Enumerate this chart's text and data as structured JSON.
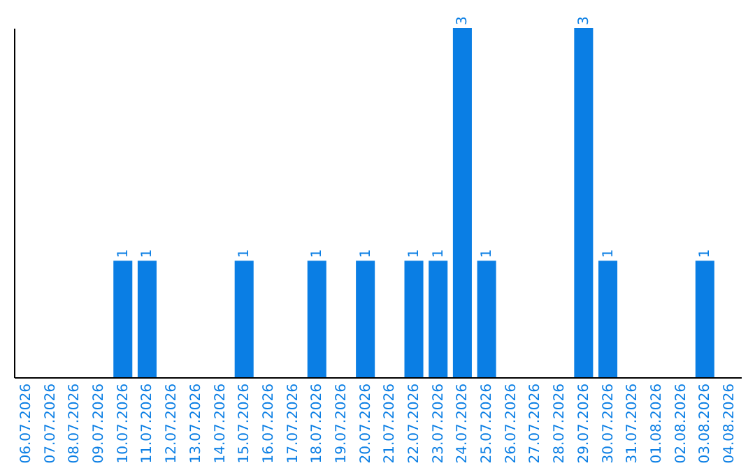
{
  "chart_data": {
    "type": "bar",
    "categories": [
      "06.07.2026",
      "07.07.2026",
      "08.07.2026",
      "09.07.2026",
      "10.07.2026",
      "11.07.2026",
      "12.07.2026",
      "13.07.2026",
      "14.07.2026",
      "15.07.2026",
      "16.07.2026",
      "17.07.2026",
      "18.07.2026",
      "19.07.2026",
      "20.07.2026",
      "21.07.2026",
      "22.07.2026",
      "23.07.2026",
      "24.07.2026",
      "25.07.2026",
      "26.07.2026",
      "27.07.2026",
      "28.07.2026",
      "29.07.2026",
      "30.07.2026",
      "31.07.2026",
      "01.08.2026",
      "02.08.2026",
      "03.08.2026",
      "04.08.2026"
    ],
    "values": [
      0,
      0,
      0,
      0,
      1,
      1,
      0,
      0,
      0,
      1,
      0,
      0,
      1,
      0,
      1,
      0,
      1,
      1,
      3,
      1,
      0,
      0,
      0,
      3,
      1,
      0,
      0,
      0,
      1,
      0
    ],
    "value_labels": [
      null,
      null,
      null,
      null,
      "1",
      "1",
      null,
      null,
      null,
      "1",
      null,
      null,
      "1",
      null,
      "1",
      null,
      "1",
      "1",
      "3",
      "1",
      null,
      null,
      null,
      "3",
      "1",
      null,
      null,
      null,
      "1",
      null
    ],
    "color": "#0a7ee4",
    "ylim": [
      0,
      3
    ],
    "tick_labels": "x"
  }
}
